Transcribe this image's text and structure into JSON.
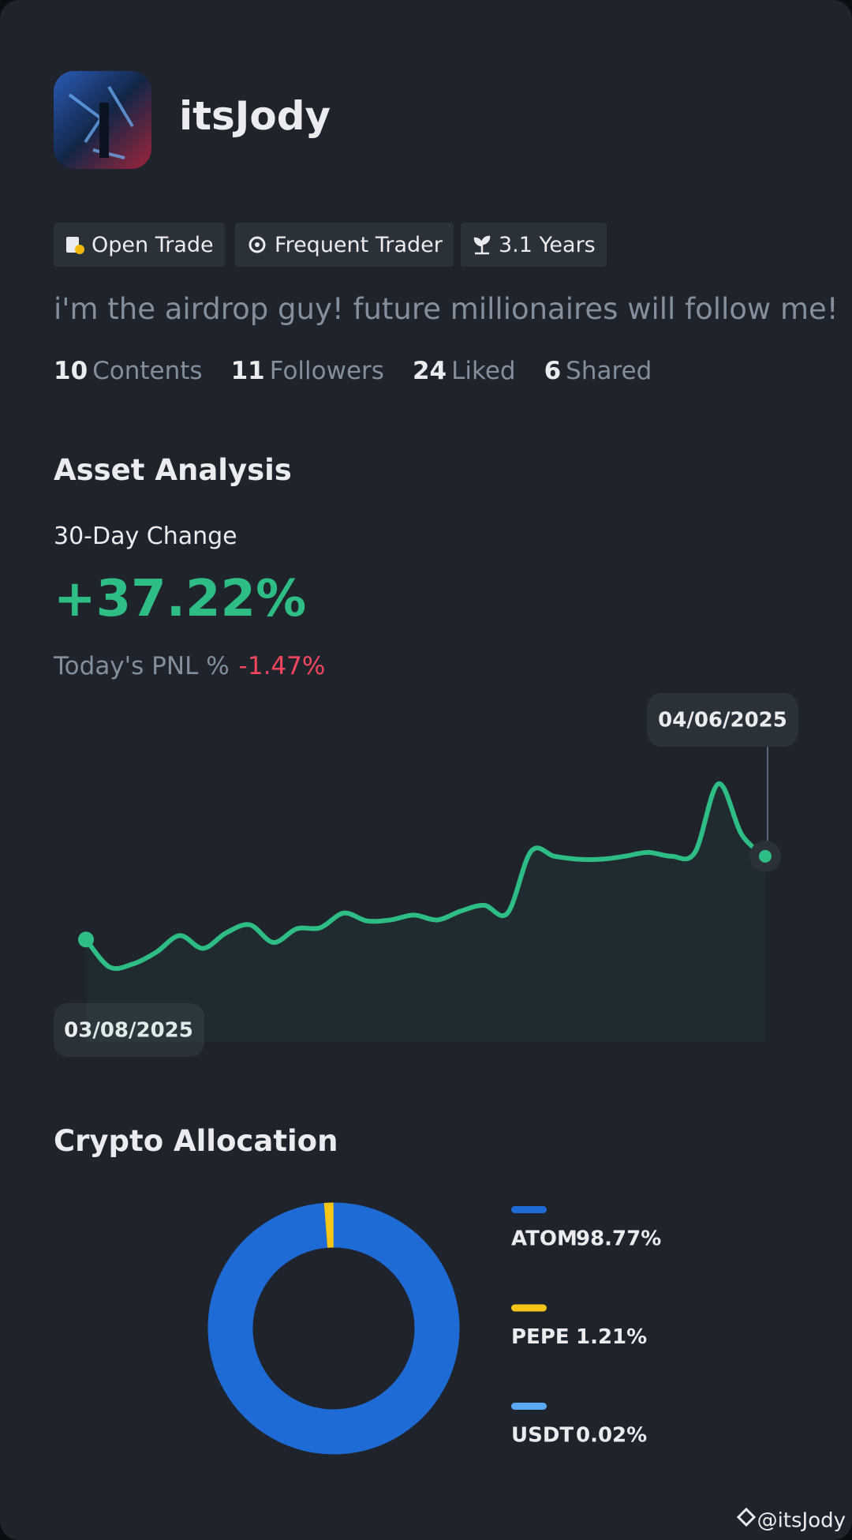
{
  "profile": {
    "name": "itsJody",
    "badges": [
      "Open Trade",
      "Frequent Trader",
      "3.1 Years"
    ],
    "bio": "i'm the airdrop guy! future millionaires will follow me!",
    "stats": [
      {
        "value": 10,
        "label": "Contents"
      },
      {
        "value": 11,
        "label": "Followers"
      },
      {
        "value": 24,
        "label": "Liked"
      },
      {
        "value": 6,
        "label": "Shared"
      }
    ]
  },
  "asset_analysis": {
    "title": "Asset Analysis",
    "change_label": "30-Day Change",
    "change_value": "+37.22%",
    "pnl_label": "Today's PNL %",
    "pnl_value": "-1.47%"
  },
  "chart_data": [
    {
      "type": "line",
      "color": "#2ebd85",
      "categories": [
        "03/08/2025",
        null,
        null,
        null,
        null,
        null,
        null,
        null,
        null,
        null,
        null,
        null,
        null,
        null,
        null,
        null,
        null,
        null,
        null,
        null,
        null,
        null,
        null,
        null,
        null,
        null,
        null,
        null,
        null,
        "04/06/2025"
      ],
      "values": [
        103,
        75,
        78,
        90,
        107,
        94,
        110,
        118,
        100,
        114,
        115,
        130,
        122,
        123,
        128,
        123,
        132,
        138,
        130,
        193,
        188,
        185,
        185,
        188,
        192,
        188,
        192,
        262,
        210,
        188
      ]
    },
    {
      "type": "pie",
      "title": "Crypto Allocation",
      "donut": true,
      "categories": [
        "ATOM",
        "PEPE",
        "USDT"
      ],
      "values": [
        98.77,
        1.21,
        0.02
      ],
      "value_labels": [
        "98.77%",
        "1.21%",
        "0.02%"
      ],
      "colors": [
        "#1e6bd6",
        "#f5c518",
        "#5aa9f5"
      ]
    }
  ],
  "watermark": "@itsJody"
}
